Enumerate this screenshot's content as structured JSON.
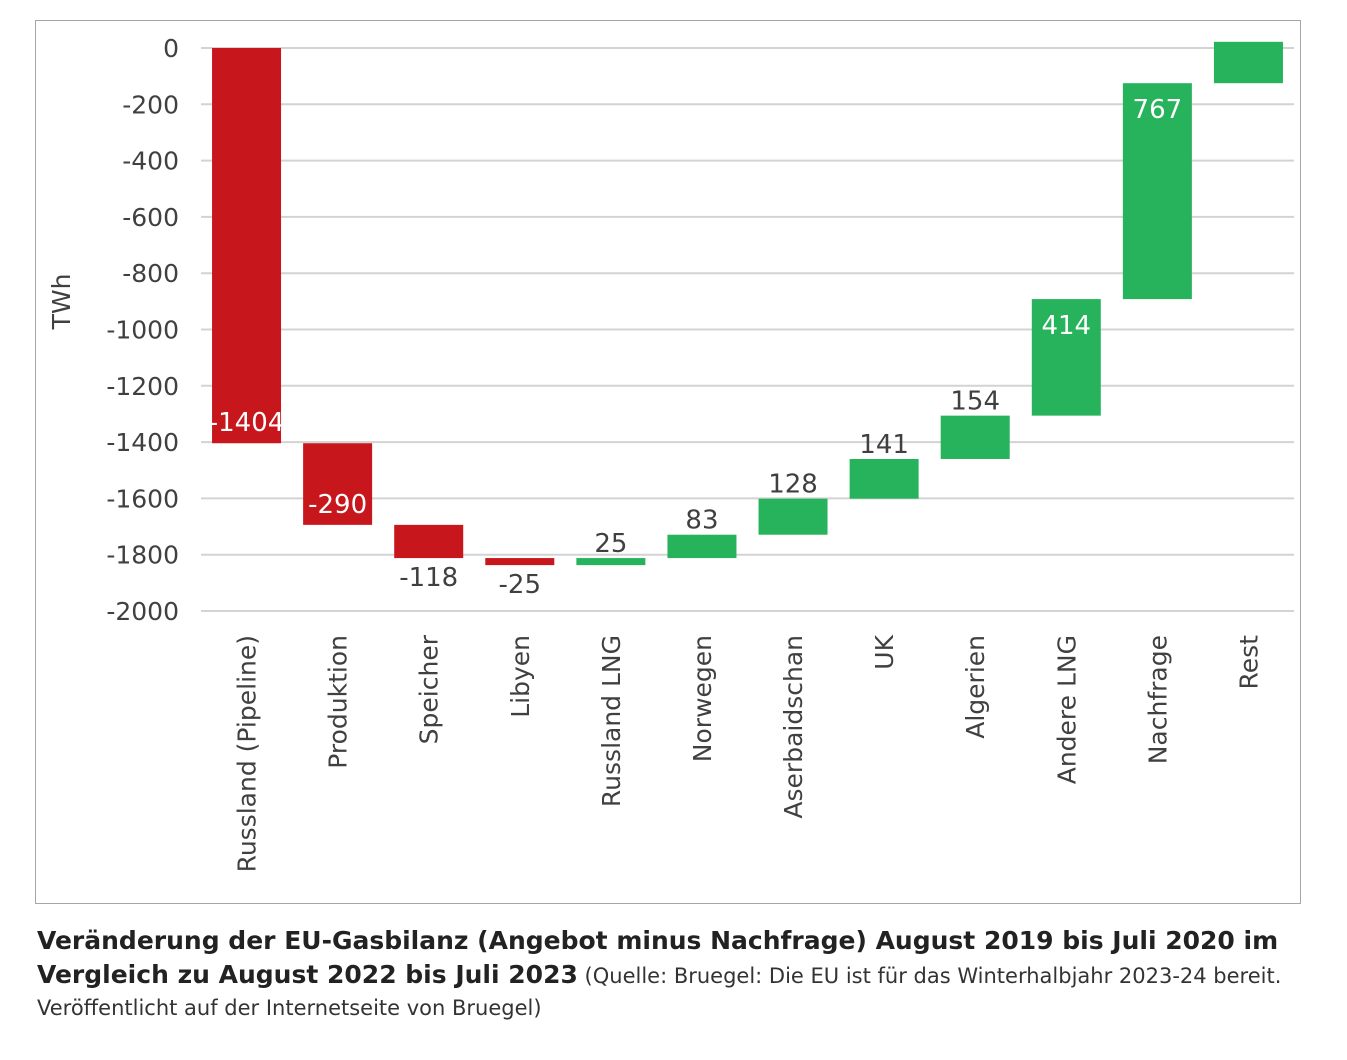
{
  "chart_data": {
    "type": "waterfall",
    "ylabel": "TWh",
    "ylim": [
      -2000,
      0
    ],
    "yticks": [
      0,
      -200,
      -400,
      -600,
      -800,
      -1000,
      -1200,
      -1400,
      -1600,
      -1800,
      -2000
    ],
    "grid": true,
    "categories": [
      "Russland (Pipeline)",
      "Produktion",
      "Speicher",
      "Libyen",
      "Russland LNG",
      "Norwegen",
      "Aserbaidschan",
      "UK",
      "Algerien",
      "Andere LNG",
      "Nachfrage",
      "Rest"
    ],
    "values": [
      -1404,
      -290,
      -118,
      -25,
      25,
      83,
      128,
      141,
      154,
      414,
      767,
      147
    ],
    "data_labels": [
      "-1404",
      "-290",
      "-118",
      "-25",
      "25",
      "83",
      "128",
      "141",
      "154",
      "414",
      "767",
      ""
    ],
    "colors": {
      "negative": "#c8161d",
      "positive": "#27b35c"
    }
  },
  "caption": {
    "title_line1": "Veränderung der EU-Gasbilanz (Angebot minus Nachfrage) August 2019 bis Juli 2020 im",
    "title_line2": "Vergleich zu August 2022 bis Juli 2023",
    "source_part1": " (Quelle: Bruegel: Die EU ist für das Winterhalbjahr 2023-24 bereit.",
    "source_part2": "Veröffentlicht auf der Internetseite von Bruegel)"
  }
}
